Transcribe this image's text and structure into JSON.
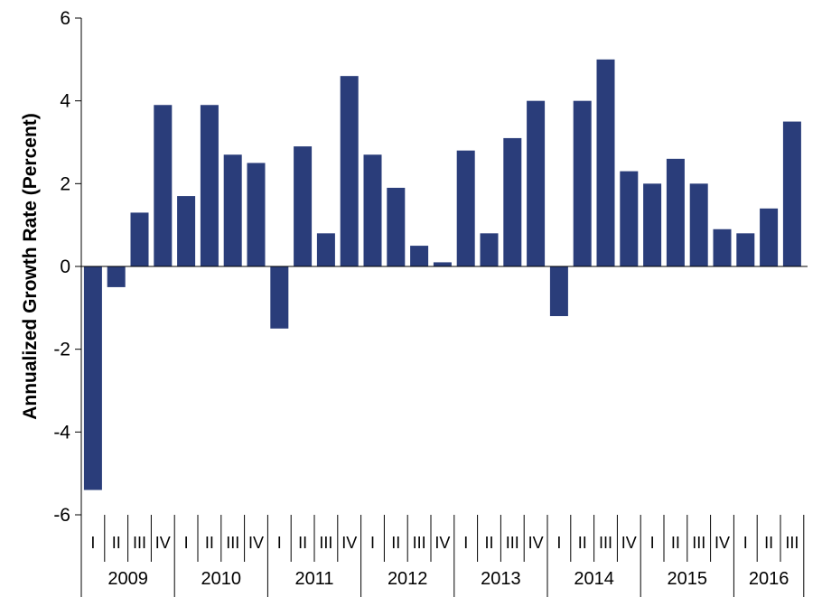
{
  "chart_data": {
    "type": "bar",
    "ylabel": "Annualized Growth Rate (Percent)",
    "ylim": [
      -6,
      6
    ],
    "yticks": [
      -6,
      -4,
      -2,
      0,
      2,
      4,
      6
    ],
    "grid": false,
    "bar_color": "#2a3d7a",
    "years": [
      {
        "label": "2009",
        "quarters": [
          "I",
          "II",
          "III",
          "IV"
        ]
      },
      {
        "label": "2010",
        "quarters": [
          "I",
          "II",
          "III",
          "IV"
        ]
      },
      {
        "label": "2011",
        "quarters": [
          "I",
          "II",
          "III",
          "IV"
        ]
      },
      {
        "label": "2012",
        "quarters": [
          "I",
          "II",
          "III",
          "IV"
        ]
      },
      {
        "label": "2013",
        "quarters": [
          "I",
          "II",
          "III",
          "IV"
        ]
      },
      {
        "label": "2014",
        "quarters": [
          "I",
          "II",
          "III",
          "IV"
        ]
      },
      {
        "label": "2015",
        "quarters": [
          "I",
          "II",
          "III",
          "IV"
        ]
      },
      {
        "label": "2016",
        "quarters": [
          "I",
          "II",
          "III"
        ]
      }
    ],
    "values": [
      -5.4,
      -0.5,
      1.3,
      3.9,
      1.7,
      3.9,
      2.7,
      2.5,
      -1.5,
      2.9,
      0.8,
      4.6,
      2.7,
      1.9,
      0.5,
      0.1,
      2.8,
      0.8,
      3.1,
      4.0,
      -1.2,
      4.0,
      5.0,
      2.3,
      2.0,
      2.6,
      2.0,
      0.9,
      0.8,
      1.4,
      3.5
    ]
  }
}
